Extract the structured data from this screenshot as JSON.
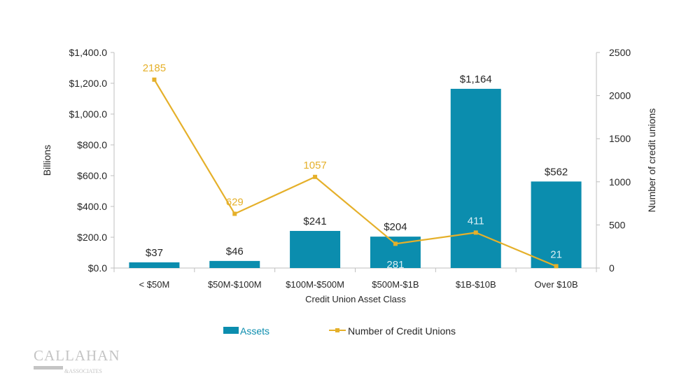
{
  "chart_data": {
    "type": "bar+line",
    "xlabel": "Credit Union Asset Class",
    "ylabel": "Billions",
    "y2label": "Number of credit unions",
    "categories": [
      "< $50M",
      "$50M-$100M",
      "$100M-$500M",
      "$500M-$1B",
      "$1B-$10B",
      "Over $10B"
    ],
    "ylim": [
      0,
      1400
    ],
    "y_ticks": [
      0,
      200,
      400,
      600,
      800,
      1000,
      1200,
      1400
    ],
    "y_tick_labels": [
      "$0.0",
      "$200.0",
      "$400.0",
      "$600.0",
      "$800.0",
      "$1,000.0",
      "$1,200.0",
      "$1,400.0"
    ],
    "y2lim": [
      0,
      2500
    ],
    "y2_ticks": [
      0,
      500,
      1000,
      1500,
      2000,
      2500
    ],
    "y2_tick_labels": [
      "0",
      "500",
      "1000",
      "1500",
      "2000",
      "2500"
    ],
    "grid": false,
    "legend": "bottom",
    "series": [
      {
        "name": "Assets",
        "type": "bar",
        "axis": "left",
        "color": "#0B8DAE",
        "values": [
          37,
          46,
          241,
          204,
          1164,
          562
        ],
        "labels": [
          "$37",
          "$46",
          "$241",
          "$204",
          "$1,164",
          "$562"
        ]
      },
      {
        "name": "Number of Credit Unions",
        "type": "line",
        "axis": "right",
        "color": "#E5B02A",
        "values": [
          2185,
          629,
          1057,
          281,
          411,
          21
        ],
        "labels": [
          "2185",
          "629",
          "1057",
          "281",
          "411",
          "21"
        ]
      }
    ]
  },
  "logo": {
    "text": "CALLAHAN & ASSOCIATES"
  }
}
